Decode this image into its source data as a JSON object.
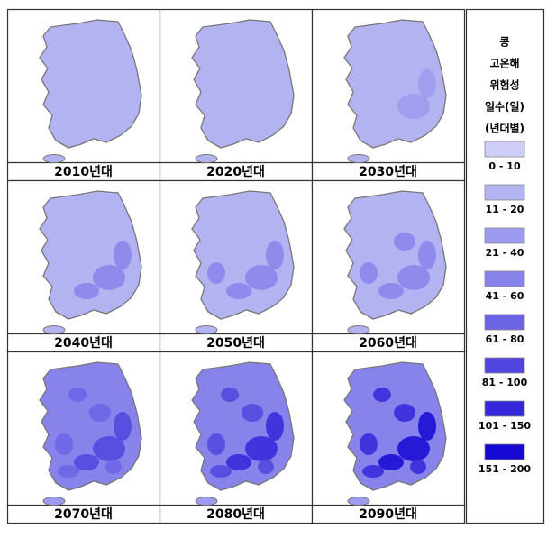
{
  "panels": [
    {
      "label": "2010년대"
    },
    {
      "label": "2020년대"
    },
    {
      "label": "2030년대"
    },
    {
      "label": "2040년대"
    },
    {
      "label": "2050년대"
    },
    {
      "label": "2060년대"
    },
    {
      "label": "2070년대"
    },
    {
      "label": "2080년대"
    },
    {
      "label": "2090년대"
    }
  ],
  "legend": {
    "title": [
      "콩",
      "고온해",
      "위험성",
      "일수(일)",
      "(년대별)"
    ],
    "items": [
      {
        "label": "0 - 10",
        "color": "#cdcdf7"
      },
      {
        "label": "11 - 20",
        "color": "#b4b3f2"
      },
      {
        "label": "21 - 40",
        "color": "#9d9aef"
      },
      {
        "label": "41 - 60",
        "color": "#8882eb"
      },
      {
        "label": "61 - 80",
        "color": "#6c64e5"
      },
      {
        "label": "81 - 100",
        "color": "#5046df"
      },
      {
        "label": "101 - 150",
        "color": "#3428da"
      },
      {
        "label": "151 - 200",
        "color": "#1508d2"
      }
    ]
  }
}
